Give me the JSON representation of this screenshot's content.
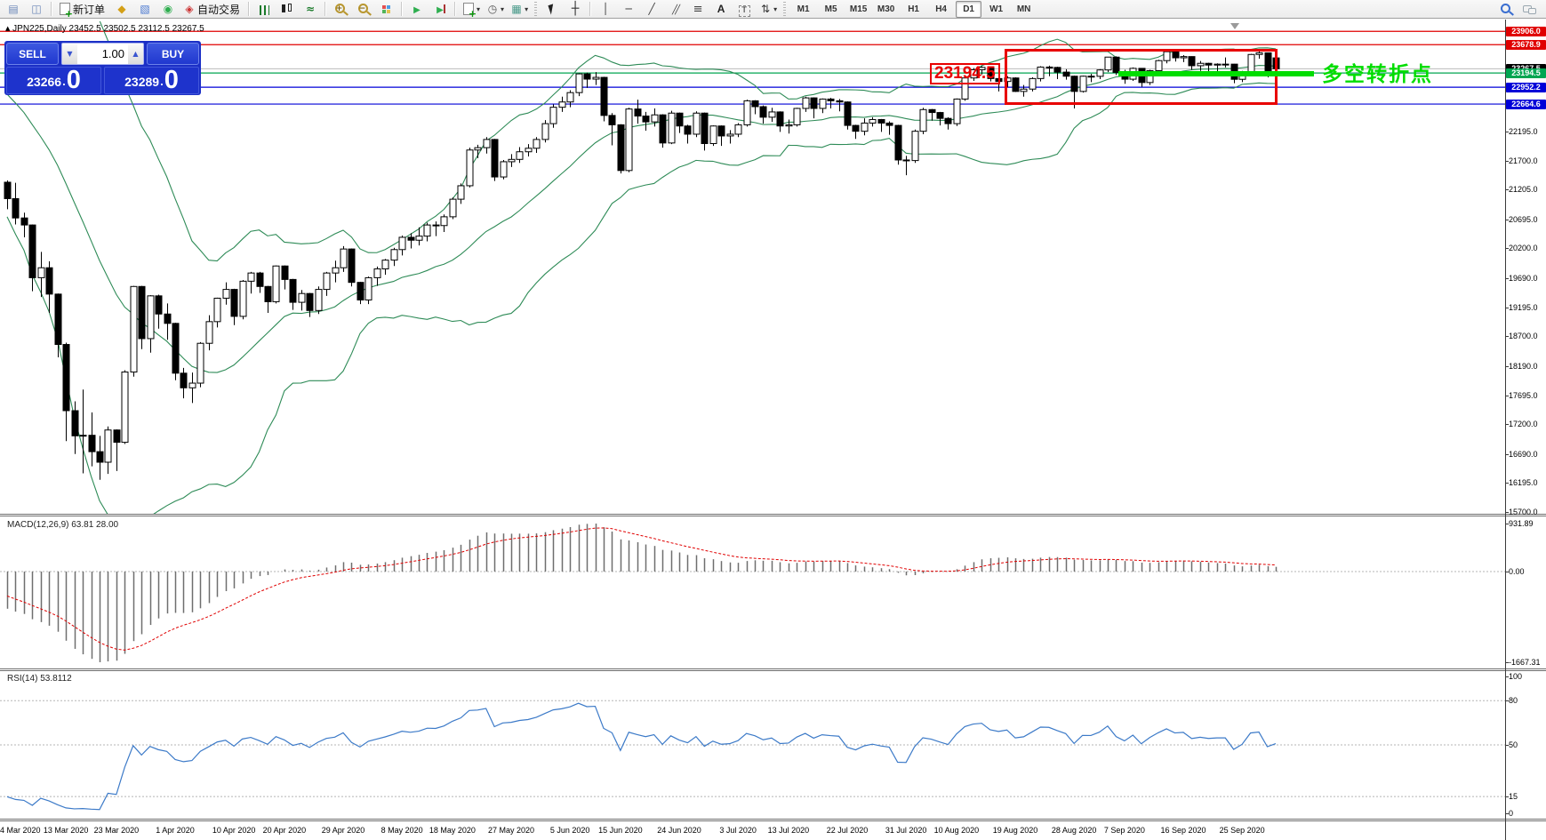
{
  "toolbar": {
    "items": [
      {
        "name": "charts-panel",
        "icon": "window"
      },
      {
        "name": "data-window",
        "icon": "mag-window"
      },
      {
        "type": "sep"
      },
      {
        "name": "new-order",
        "icon": "doc",
        "label": "新订单"
      },
      {
        "name": "metaeditor",
        "icon": "gold"
      },
      {
        "name": "chart-upload",
        "icon": "win-blue"
      },
      {
        "name": "signals",
        "icon": "signal"
      },
      {
        "name": "auto-trading",
        "icon": "robot",
        "label": "自动交易"
      },
      {
        "type": "sep"
      },
      {
        "name": "bar-chart-mode",
        "icon": "bars"
      },
      {
        "name": "candlestick-mode",
        "icon": "candles"
      },
      {
        "name": "line-chart-mode",
        "icon": "linechart"
      },
      {
        "type": "sep"
      },
      {
        "name": "zoom-in",
        "icon": "zoomin"
      },
      {
        "name": "zoom-out",
        "icon": "zoomout"
      },
      {
        "name": "tile-windows",
        "icon": "tiles"
      },
      {
        "type": "sep"
      },
      {
        "name": "auto-scroll",
        "icon": "autoscroll"
      },
      {
        "name": "chart-shift",
        "icon": "chartshift"
      },
      {
        "type": "sep"
      },
      {
        "name": "new-chart",
        "icon": "doc",
        "dropdown": true
      },
      {
        "name": "periods",
        "icon": "clock",
        "dropdown": true
      },
      {
        "name": "profiles",
        "icon": "preset",
        "dropdown": true
      },
      {
        "type": "grip"
      },
      {
        "name": "cursor",
        "icon": "cursor"
      },
      {
        "name": "crosshair",
        "icon": "crosshair"
      },
      {
        "type": "sep"
      },
      {
        "name": "vertical-line-tool",
        "icon": "vline"
      },
      {
        "name": "horizontal-line-tool",
        "icon": "hline"
      },
      {
        "name": "trendline-tool",
        "icon": "tline"
      },
      {
        "name": "equidistant-channel-tool",
        "icon": "channel"
      },
      {
        "name": "fibonacci-tool",
        "icon": "fibo"
      },
      {
        "name": "text-tool",
        "icon": "textA"
      },
      {
        "name": "text-label-tool",
        "icon": "textT"
      },
      {
        "name": "arrows-tool",
        "icon": "arrows",
        "dropdown": true
      },
      {
        "type": "grip"
      }
    ],
    "timeframes": [
      "M1",
      "M5",
      "M15",
      "M30",
      "H1",
      "H4",
      "D1",
      "W1",
      "MN"
    ],
    "active_timeframe": "D1"
  },
  "chart": {
    "marker": "▲",
    "title_symbol": "JPN225,Daily",
    "title_ohlc": "23452.5 23502.5 23112.5 23267.5"
  },
  "trade_panel": {
    "sell_label": "SELL",
    "buy_label": "BUY",
    "volume": "1.00",
    "down_glyph": "▼",
    "up_glyph": "▲",
    "sell_price": "23266",
    "buy_price": "23289",
    "point": ".",
    "sell_big": "0",
    "buy_big": "0"
  },
  "annotations": {
    "price_tag": "23194.5",
    "trend_text": "多空转折点",
    "highlight_color": "#e80000",
    "trend_color": "#00dd00"
  },
  "levels": [
    {
      "price": 23906.0,
      "badge": "23906.0",
      "color": "#e00000"
    },
    {
      "price": 23678.9,
      "badge": "23678.9",
      "color": "#e00000"
    },
    {
      "price": 23194.5,
      "badge": "23194.5",
      "color": "#00a651"
    },
    {
      "price": 22952.2,
      "badge": "22952.2",
      "color": "#0000d8"
    },
    {
      "price": 22664.6,
      "badge": "22664.6",
      "color": "#0000d8"
    }
  ],
  "current_price": {
    "value": 23267.5,
    "badge": "23267.5",
    "badge_color": "#000000",
    "line_color": "#bbbbbb"
  },
  "price_axis_ticks": [
    "22195.0",
    "21700.0",
    "21205.0",
    "20695.0",
    "20200.0",
    "19690.0",
    "19195.0",
    "18700.0",
    "18190.0",
    "17695.0",
    "17200.0",
    "16690.0",
    "16195.0",
    "15700.0"
  ],
  "macd": {
    "label": "MACD(12,26,9) 63.81 28.00",
    "axis_max": "931.89",
    "axis_zero": "0.00",
    "axis_min": "-1667.31"
  },
  "rsi": {
    "label": "RSI(14) 53.8112",
    "axis": [
      "100",
      "80",
      "50",
      "15",
      "0"
    ],
    "levels": [
      80,
      50,
      15
    ]
  },
  "time_axis": {
    "labels": [
      {
        "text": "4 Mar 2020",
        "idx": 0
      },
      {
        "text": "13 Mar 2020",
        "idx": 7
      },
      {
        "text": "23 Mar 2020",
        "idx": 13
      },
      {
        "text": "1 Apr 2020",
        "idx": 20
      },
      {
        "text": "10 Apr 2020",
        "idx": 27
      },
      {
        "text": "20 Apr 2020",
        "idx": 33
      },
      {
        "text": "29 Apr 2020",
        "idx": 40
      },
      {
        "text": "8 May 2020",
        "idx": 47
      },
      {
        "text": "18 May 2020",
        "idx": 53
      },
      {
        "text": "27 May 2020",
        "idx": 60
      },
      {
        "text": "5 Jun 2020",
        "idx": 67
      },
      {
        "text": "15 Jun 2020",
        "idx": 73
      },
      {
        "text": "24 Jun 2020",
        "idx": 80
      },
      {
        "text": "3 Jul 2020",
        "idx": 87
      },
      {
        "text": "13 Jul 2020",
        "idx": 93
      },
      {
        "text": "22 Jul 2020",
        "idx": 100
      },
      {
        "text": "31 Jul 2020",
        "idx": 107
      },
      {
        "text": "10 Aug 2020",
        "idx": 113
      },
      {
        "text": "19 Aug 2020",
        "idx": 120
      },
      {
        "text": "28 Aug 2020",
        "idx": 127
      },
      {
        "text": "7 Sep 2020",
        "idx": 133
      },
      {
        "text": "16 Sep 2020",
        "idx": 140
      },
      {
        "text": "25 Sep 2020",
        "idx": 147
      }
    ]
  },
  "chart_data": {
    "type": "candlestick",
    "symbol": "JPN225",
    "period": "Daily",
    "bollinger_color": "#2E8B57",
    "macd_histogram_color": "#6e6e6e",
    "macd_signal_color": "#e00000",
    "rsi_color": "#3c7ac8",
    "indicators": {
      "bollinger": {
        "period": 20,
        "deviation": 2
      },
      "macd": {
        "fast": 12,
        "slow": 26,
        "signal": 9
      },
      "rsi": {
        "period": 14
      }
    },
    "prehistory_closes": [
      23656,
      23605,
      23550,
      23640,
      23740,
      23830,
      23910,
      23860,
      23790,
      23870,
      23900,
      23820,
      23740,
      23790,
      23850,
      23790,
      23687,
      23739,
      23827,
      23861,
      23996,
      23873,
      23828,
      23686,
      23479,
      23427,
      23386,
      23290,
      22950,
      22605,
      22426,
      21948,
      21710,
      21143,
      21344,
      21083
    ],
    "candles": [
      [
        21330,
        21360,
        20870,
        21050
      ],
      [
        21050,
        21320,
        20610,
        20720
      ],
      [
        20720,
        20810,
        20390,
        20600
      ],
      [
        20600,
        20610,
        19470,
        19700
      ],
      [
        19700,
        20140,
        19370,
        19870
      ],
      [
        19870,
        19980,
        19100,
        19420
      ],
      [
        19420,
        19430,
        18340,
        18560
      ],
      [
        18560,
        18590,
        16910,
        17430
      ],
      [
        17430,
        17590,
        16690,
        17000
      ],
      [
        17000,
        17790,
        16360,
        17010
      ],
      [
        17010,
        17400,
        16480,
        16730
      ],
      [
        16730,
        17000,
        16250,
        16550
      ],
      [
        16550,
        17160,
        16350,
        17100
      ],
      [
        17100,
        17110,
        16400,
        16890
      ],
      [
        16890,
        18120,
        16860,
        18090
      ],
      [
        18090,
        19560,
        18010,
        19550
      ],
      [
        19550,
        19560,
        18480,
        18660
      ],
      [
        18660,
        19400,
        18420,
        19390
      ],
      [
        19390,
        19410,
        18830,
        19080
      ],
      [
        19080,
        19260,
        18640,
        18920
      ],
      [
        18920,
        18930,
        17950,
        18070
      ],
      [
        18070,
        18160,
        17640,
        17820
      ],
      [
        17820,
        18080,
        17560,
        17900
      ],
      [
        17900,
        18600,
        17830,
        18580
      ],
      [
        18580,
        19060,
        18460,
        18950
      ],
      [
        18950,
        19360,
        18850,
        19350
      ],
      [
        19350,
        19620,
        19240,
        19500
      ],
      [
        19500,
        19510,
        18890,
        19040
      ],
      [
        19040,
        19660,
        18990,
        19640
      ],
      [
        19640,
        19800,
        19430,
        19780
      ],
      [
        19780,
        19800,
        19440,
        19550
      ],
      [
        19550,
        19560,
        19100,
        19290
      ],
      [
        19290,
        19910,
        19260,
        19900
      ],
      [
        19900,
        19910,
        19500,
        19670
      ],
      [
        19670,
        19680,
        19150,
        19280
      ],
      [
        19280,
        19490,
        19140,
        19430
      ],
      [
        19430,
        19440,
        19030,
        19140
      ],
      [
        19140,
        19550,
        19080,
        19500
      ],
      [
        19500,
        19800,
        19390,
        19780
      ],
      [
        19780,
        19990,
        19620,
        19870
      ],
      [
        19870,
        20240,
        19800,
        20190
      ],
      [
        20190,
        20200,
        19550,
        19620
      ],
      [
        19620,
        19630,
        19250,
        19320
      ],
      [
        19320,
        19720,
        19250,
        19700
      ],
      [
        19700,
        19890,
        19560,
        19850
      ],
      [
        19850,
        20020,
        19750,
        20000
      ],
      [
        20000,
        20210,
        19900,
        20180
      ],
      [
        20180,
        20420,
        20080,
        20390
      ],
      [
        20390,
        20460,
        20200,
        20340
      ],
      [
        20340,
        20560,
        20250,
        20410
      ],
      [
        20410,
        20640,
        20320,
        20600
      ],
      [
        20600,
        20660,
        20410,
        20590
      ],
      [
        20590,
        20780,
        20480,
        20740
      ],
      [
        20740,
        21070,
        20700,
        21040
      ],
      [
        21040,
        21310,
        20960,
        21270
      ],
      [
        21270,
        21920,
        21240,
        21880
      ],
      [
        21880,
        21970,
        21740,
        21920
      ],
      [
        21920,
        22100,
        21820,
        22060
      ],
      [
        22060,
        22070,
        21350,
        21420
      ],
      [
        21420,
        21710,
        21380,
        21680
      ],
      [
        21680,
        21810,
        21590,
        21720
      ],
      [
        21720,
        21930,
        21660,
        21850
      ],
      [
        21850,
        21980,
        21770,
        21910
      ],
      [
        21910,
        22100,
        21830,
        22060
      ],
      [
        22060,
        22390,
        22010,
        22330
      ],
      [
        22330,
        22660,
        22260,
        22610
      ],
      [
        22610,
        22790,
        22530,
        22700
      ],
      [
        22700,
        22900,
        22610,
        22860
      ],
      [
        22860,
        23190,
        22800,
        23180
      ],
      [
        23180,
        23200,
        22940,
        23090
      ],
      [
        23090,
        23210,
        22990,
        23120
      ],
      [
        23120,
        23130,
        22370,
        22470
      ],
      [
        22470,
        22510,
        21960,
        22310
      ],
      [
        22310,
        22320,
        21480,
        21530
      ],
      [
        21530,
        22600,
        21500,
        22580
      ],
      [
        22580,
        22740,
        22330,
        22460
      ],
      [
        22460,
        22530,
        22210,
        22360
      ],
      [
        22360,
        22590,
        22280,
        22480
      ],
      [
        22480,
        22490,
        21920,
        22000
      ],
      [
        22000,
        22550,
        21980,
        22510
      ],
      [
        22510,
        22520,
        22170,
        22290
      ],
      [
        22290,
        22310,
        21990,
        22150
      ],
      [
        22150,
        22540,
        22100,
        22510
      ],
      [
        22510,
        22520,
        21870,
        21990
      ],
      [
        21990,
        22300,
        21950,
        22290
      ],
      [
        22290,
        22300,
        21950,
        22120
      ],
      [
        22120,
        22220,
        21990,
        22150
      ],
      [
        22150,
        22340,
        22100,
        22310
      ],
      [
        22310,
        22740,
        22280,
        22720
      ],
      [
        22720,
        22730,
        22490,
        22620
      ],
      [
        22620,
        22640,
        22330,
        22440
      ],
      [
        22440,
        22600,
        22360,
        22530
      ],
      [
        22530,
        22540,
        22190,
        22290
      ],
      [
        22290,
        22400,
        22160,
        22310
      ],
      [
        22310,
        22600,
        22280,
        22590
      ],
      [
        22590,
        22790,
        22530,
        22770
      ],
      [
        22770,
        22780,
        22420,
        22590
      ],
      [
        22590,
        22760,
        22510,
        22750
      ],
      [
        22750,
        22770,
        22590,
        22720
      ],
      [
        22720,
        22750,
        22540,
        22700
      ],
      [
        22700,
        22710,
        22230,
        22300
      ],
      [
        22300,
        22310,
        22070,
        22200
      ],
      [
        22200,
        22420,
        22130,
        22340
      ],
      [
        22340,
        22440,
        22280,
        22400
      ],
      [
        22400,
        22410,
        22190,
        22340
      ],
      [
        22340,
        22370,
        22140,
        22300
      ],
      [
        22300,
        22310,
        21630,
        21710
      ],
      [
        21710,
        21780,
        21450,
        21700
      ],
      [
        21700,
        22230,
        21660,
        22200
      ],
      [
        22200,
        22600,
        22150,
        22570
      ],
      [
        22570,
        22580,
        22380,
        22520
      ],
      [
        22520,
        22530,
        22300,
        22420
      ],
      [
        22420,
        22440,
        22230,
        22330
      ],
      [
        22330,
        22760,
        22290,
        22750
      ],
      [
        22750,
        23130,
        22720,
        23110
      ],
      [
        23110,
        23280,
        23060,
        23250
      ],
      [
        23250,
        23310,
        23170,
        23290
      ],
      [
        23290,
        23300,
        23050,
        23100
      ],
      [
        23100,
        23120,
        22880,
        23050
      ],
      [
        23050,
        23140,
        22950,
        23110
      ],
      [
        23110,
        23120,
        22870,
        22880
      ],
      [
        22880,
        22990,
        22790,
        22920
      ],
      [
        22920,
        23120,
        22880,
        23100
      ],
      [
        23100,
        23310,
        23050,
        23296
      ],
      [
        23296,
        23320,
        23140,
        23290
      ],
      [
        23290,
        23300,
        23090,
        23210
      ],
      [
        23210,
        23260,
        23080,
        23140
      ],
      [
        23140,
        23150,
        22590,
        22880
      ],
      [
        22880,
        23150,
        22860,
        23140
      ],
      [
        23140,
        23180,
        23040,
        23138
      ],
      [
        23138,
        23260,
        23090,
        23247
      ],
      [
        23247,
        23470,
        23210,
        23466
      ],
      [
        23466,
        23480,
        23160,
        23205
      ],
      [
        23205,
        23250,
        23010,
        23089
      ],
      [
        23089,
        23290,
        23060,
        23274
      ],
      [
        23274,
        23280,
        22960,
        23032
      ],
      [
        23032,
        23250,
        22990,
        23235
      ],
      [
        23235,
        23420,
        23210,
        23406
      ],
      [
        23406,
        23580,
        23360,
        23559
      ],
      [
        23559,
        23570,
        23390,
        23454
      ],
      [
        23454,
        23500,
        23380,
        23475
      ],
      [
        23475,
        23480,
        23250,
        23319
      ],
      [
        23319,
        23400,
        23230,
        23360
      ],
      [
        23360,
        23370,
        23200,
        23330
      ],
      [
        23330,
        23360,
        23180,
        23346
      ],
      [
        23346,
        23460,
        23290,
        23346
      ],
      [
        23346,
        23350,
        23020,
        23087
      ],
      [
        23087,
        23230,
        23040,
        23204
      ],
      [
        23204,
        23520,
        23190,
        23511
      ],
      [
        23511,
        23560,
        23440,
        23539
      ],
      [
        23539,
        23540,
        23120,
        23185
      ],
      [
        23452.5,
        23502.5,
        23112.5,
        23267.5
      ]
    ]
  }
}
